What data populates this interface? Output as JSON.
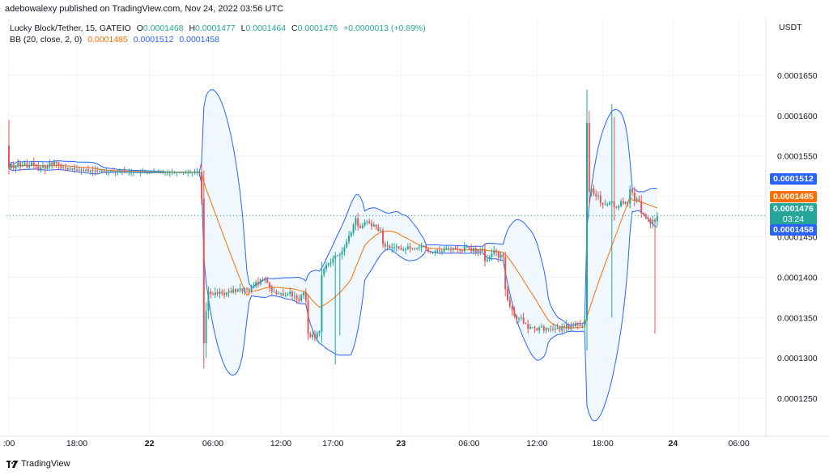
{
  "publisher_line": "adebowalexy published on TradingView.com, Nov 24, 2022 03:56 UTC",
  "legend": {
    "symbol": "Lucky Block/Tether, 15, GATEIO",
    "o_label": "O",
    "o": "0.0001468",
    "h_label": "H",
    "h": "0.0001477",
    "l_label": "L",
    "l": "0.0001464",
    "c_label": "C",
    "c": "0.0001476",
    "change": "+0.0000013 (+0.89%)",
    "bb_label": "BB (20, close, 2, 0)",
    "bb_basis": "0.0001485",
    "bb_upper": "0.0001512",
    "bb_lower": "0.0001458"
  },
  "brand": "TradingView",
  "price_tags": {
    "upper": "0.0001512",
    "basis": "0.0001485",
    "last": "0.0001476",
    "countdown": "03:24",
    "lower": "0.0001458"
  },
  "colors": {
    "up": "#26a69a",
    "down": "#ef5350",
    "bb_band": "#2962ff",
    "bb_basis": "#ff6d00",
    "bb_fill": "#e3f2fd"
  },
  "chart_data": {
    "type": "candlestick",
    "currency": "USDT",
    "y_ticks": [
      "0.0001250",
      "0.0001300",
      "0.0001350",
      "0.0001400",
      "0.0001450",
      "0.0001500",
      "0.0001550",
      "0.0001600",
      "0.0001650"
    ],
    "y_range": [
      0.0001207,
      0.000172
    ],
    "x_ticks": [
      ":00",
      "18:00",
      "22",
      "06:00",
      "12:00",
      "17:00",
      "23",
      "06:00",
      "12:00",
      "18:00",
      "24",
      "06:00"
    ],
    "x_tick_index": [
      0,
      30,
      62,
      90,
      120,
      143,
      173,
      203,
      233,
      262,
      293,
      322
    ],
    "last_price": 0.0001476,
    "closes": [
      0.0001535,
      0.000154,
      0.0001535,
      0.0001538,
      0.0001542,
      0.0001537,
      0.0001539,
      0.0001541,
      0.0001536,
      0.0001538,
      0.0001542,
      0.0001539,
      0.0001537,
      0.0001533,
      0.0001536,
      0.0001538,
      0.0001534,
      0.0001537,
      0.0001542,
      0.0001539,
      0.0001543,
      0.0001541,
      0.0001538,
      0.0001535,
      0.0001536,
      0.0001535,
      0.0001533,
      0.0001534,
      0.0001535,
      0.0001533,
      0.0001533,
      0.0001532,
      0.0001533,
      0.0001532,
      0.0001533,
      0.0001531,
      0.0001532,
      0.0001531,
      0.0001532,
      0.0001531,
      0.0001531,
      0.0001532,
      0.0001531,
      0.0001531,
      0.0001531,
      0.0001532,
      0.0001531,
      0.0001531,
      0.0001531,
      0.0001531,
      0.0001531,
      0.000153,
      0.000153,
      0.000153,
      0.000153,
      0.000153,
      0.000153,
      0.000153,
      0.000153,
      0.000153,
      0.000153,
      0.000153,
      0.000153,
      0.000153,
      0.000153,
      0.000153,
      0.000153,
      0.000153,
      0.000153,
      0.000153,
      0.000153,
      0.000153,
      0.000153,
      0.000153,
      0.000153,
      0.000153,
      0.000153,
      0.000153,
      0.000153,
      0.000153,
      0.000153,
      0.000153,
      0.000153,
      0.000153,
      0.000153,
      0.0001497,
      0.0001318,
      0.0001358,
      0.0001382,
      0.0001379,
      0.0001378,
      0.0001381,
      0.0001379,
      0.0001382,
      0.000138,
      0.0001378,
      0.0001381,
      0.0001383,
      0.0001381,
      0.0001385,
      0.0001382,
      0.0001384,
      0.0001386,
      0.0001382,
      0.0001386,
      0.0001385,
      0.0001383,
      0.0001387,
      0.0001389,
      0.0001394,
      0.0001391,
      0.0001397,
      0.0001396,
      0.0001398,
      0.0001393,
      0.0001387,
      0.0001382,
      0.0001382,
      0.0001379,
      0.000138,
      0.000138,
      0.0001377,
      0.0001378,
      0.0001379,
      0.0001382,
      0.0001376,
      0.0001377,
      0.0001373,
      0.0001371,
      0.0001378,
      0.0001381,
      0.0001371,
      0.000133,
      0.0001326,
      0.0001329,
      0.0001325,
      0.0001331,
      0.0001333,
      0.0001403,
      0.000141,
      0.0001415,
      0.0001417,
      0.0001418,
      0.0001423,
      0.0001427,
      0.0001427,
      0.0001428,
      0.0001432,
      0.0001437,
      0.0001444,
      0.0001451,
      0.0001455,
      0.0001465,
      0.0001473,
      0.0001463,
      0.0001461,
      0.0001464,
      0.0001468,
      0.0001469,
      0.0001467,
      0.0001463,
      0.0001465,
      0.0001462,
      0.0001457,
      0.0001458,
      0.0001441,
      0.0001438,
      0.0001439,
      0.0001436,
      0.0001437,
      0.0001437,
      0.0001438,
      0.0001436,
      0.0001434,
      0.0001434,
      0.0001435,
      0.0001438,
      0.0001435,
      0.0001436,
      0.0001435,
      0.0001436,
      0.0001437,
      0.0001439,
      0.0001439,
      0.0001435,
      0.0001432,
      0.0001431,
      0.0001431,
      0.0001432,
      0.0001433,
      0.0001432,
      0.0001432,
      0.0001435,
      0.0001435,
      0.0001435,
      0.0001434,
      0.0001436,
      0.0001435,
      0.0001434,
      0.0001433,
      0.0001432,
      0.0001438,
      0.0001438,
      0.0001436,
      0.0001432,
      0.0001436,
      0.0001431,
      0.0001434,
      0.0001432,
      0.0001434,
      0.000142,
      0.0001422,
      0.0001425,
      0.0001429,
      0.0001433,
      0.0001431,
      0.0001424,
      0.0001428,
      0.0001425,
      0.0001385,
      0.0001372,
      0.0001364,
      0.0001359,
      0.0001352,
      0.0001348,
      0.0001349,
      0.000135,
      0.0001343,
      0.0001342,
      0.0001336,
      0.0001338,
      0.0001338,
      0.0001337,
      0.0001334,
      0.0001338,
      0.0001339,
      0.0001334,
      0.0001337,
      0.0001336,
      0.0001336,
      0.0001335,
      0.0001336,
      0.0001338,
      0.0001334,
      0.0001339,
      0.0001337,
      0.0001341,
      0.0001336,
      0.000134,
      0.0001339,
      0.0001343,
      0.0001341,
      0.0001339,
      0.000134,
      0.0001347,
      0.0001591,
      0.0001505,
      0.000151,
      0.0001503,
      0.00015,
      0.0001501,
      0.0001492,
      0.000149,
      0.000149,
      0.000149,
      0.0001492,
      0.0001494,
      0.0001487,
      0.0001486,
      0.0001488,
      0.0001494,
      0.0001491,
      0.0001493,
      0.0001491,
      0.0001509,
      0.0001505,
      0.0001495,
      0.0001497,
      0.0001494,
      0.0001479,
      0.0001478,
      0.0001473,
      0.0001472,
      0.0001466,
      0.0001471,
      0.0001469,
      0.0001476
    ]
  }
}
